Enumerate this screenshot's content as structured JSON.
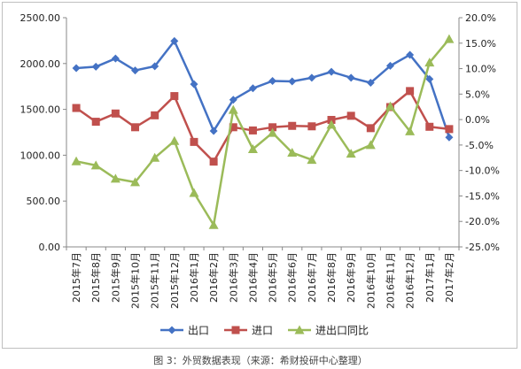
{
  "caption": "图 3：外贸数据表现（来源：希财投研中心整理）",
  "chart_data": {
    "type": "line",
    "categories": [
      "2015年7月",
      "2015年8月",
      "2015年9月",
      "2015年10月",
      "2015年11月",
      "2015年12月",
      "2016年1月",
      "2016年2月",
      "2016年3月",
      "2016年4月",
      "2016年5月",
      "2016年6月",
      "2016年7月",
      "2016年8月",
      "2016年9月",
      "2016年10月",
      "2016年11月",
      "2016年12月",
      "2017年1月",
      "2017年2月"
    ],
    "y_left": {
      "min": 0,
      "max": 2500,
      "step": 500,
      "tick_labels": [
        "0.00",
        "500.00",
        "1000.00",
        "1500.00",
        "2000.00",
        "2500.00"
      ]
    },
    "y_right": {
      "min": -25,
      "max": 20,
      "step": 5,
      "tick_labels": [
        "-25.0%",
        "-20.0%",
        "-15.0%",
        "-10.0%",
        "-5.0%",
        "0.0%",
        "5.0%",
        "10.0%",
        "15.0%",
        "20.0%"
      ]
    },
    "grid": "none",
    "legend_position": "bottom",
    "series": [
      {
        "name": "出口",
        "axis": "left",
        "marker": "diamond",
        "color": "#4472c4",
        "values": [
          1950,
          1965,
          2055,
          1925,
          1970,
          2245,
          1775,
          1265,
          1605,
          1730,
          1810,
          1805,
          1845,
          1910,
          1845,
          1790,
          1975,
          2095,
          1830,
          1195
        ]
      },
      {
        "name": "进口",
        "axis": "left",
        "marker": "square",
        "color": "#c0504d",
        "values": [
          1515,
          1365,
          1455,
          1305,
          1435,
          1645,
          1145,
          930,
          1305,
          1270,
          1305,
          1320,
          1315,
          1385,
          1430,
          1295,
          1525,
          1700,
          1310,
          1285
        ]
      },
      {
        "name": "进出口同比",
        "axis": "right",
        "marker": "triangle",
        "color": "#9bbb59",
        "values": [
          -8.2,
          -9.0,
          -11.6,
          -12.3,
          -7.5,
          -4.2,
          -14.4,
          -20.7,
          1.9,
          -5.8,
          -2.6,
          -6.5,
          -7.9,
          -1.0,
          -6.7,
          -5.0,
          2.6,
          -2.3,
          11.2,
          15.8
        ]
      }
    ]
  }
}
